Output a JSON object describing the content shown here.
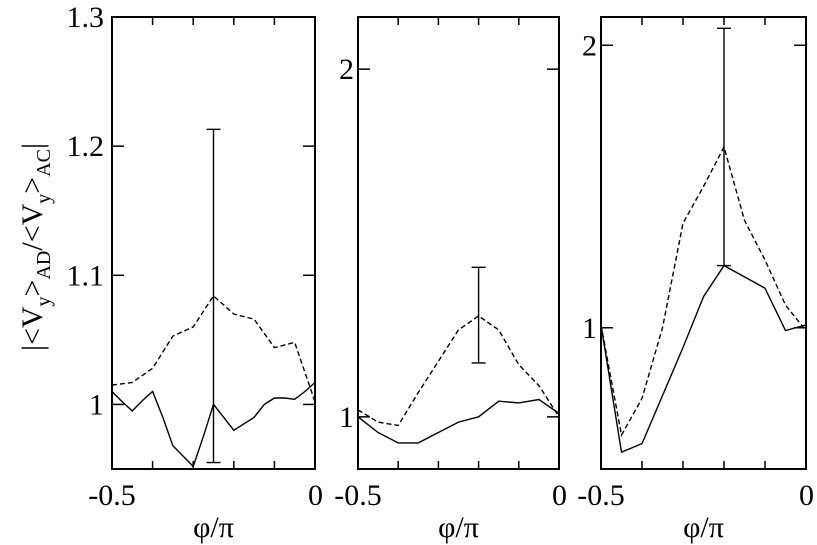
{
  "colors": {
    "line": "#000000",
    "background": "#ffffff"
  },
  "ylabel": {
    "open": "|<V",
    "sub1": "y",
    "mid": ">",
    "sub2": "AD",
    "slash": "/<V",
    "sub3": "y",
    "mid2": ">",
    "sub4": "AC",
    "close": "|"
  },
  "chart_data": [
    {
      "type": "line",
      "xlabel": "φ/π",
      "xlim": [
        -0.5,
        0
      ],
      "ylim": [
        0.95,
        1.3
      ],
      "x_ticks": [
        -0.5,
        0
      ],
      "x_tick_labels": [
        "-0.5",
        "0"
      ],
      "y_ticks": [
        1.0,
        1.1,
        1.2,
        1.3
      ],
      "y_tick_labels": [
        "1",
        "1.1",
        "1.2",
        "1.3"
      ],
      "series": [
        {
          "style": "solid",
          "x": [
            -0.5,
            -0.475,
            -0.45,
            -0.425,
            -0.4,
            -0.375,
            -0.35,
            -0.325,
            -0.3,
            -0.275,
            -0.25,
            -0.225,
            -0.2,
            -0.175,
            -0.15,
            -0.125,
            -0.1,
            -0.075,
            -0.05,
            -0.025,
            0
          ],
          "y": [
            1.01,
            1.002,
            0.995,
            1.003,
            1.01,
            0.99,
            0.968,
            0.96,
            0.952,
            0.975,
            1.0,
            0.99,
            0.98,
            0.985,
            0.99,
            1.0,
            1.005,
            1.005,
            1.004,
            1.01,
            1.017
          ]
        },
        {
          "style": "dashed",
          "x": [
            -0.5,
            -0.45,
            -0.4,
            -0.35,
            -0.3,
            -0.25,
            -0.2,
            -0.15,
            -0.1,
            -0.05,
            0
          ],
          "y": [
            1.015,
            1.017,
            1.028,
            1.053,
            1.06,
            1.084,
            1.07,
            1.066,
            1.044,
            1.048,
            1.002
          ]
        }
      ],
      "error_bars": [
        {
          "x": -0.25,
          "y": 1.084,
          "low": 0.955,
          "high": 1.213
        }
      ]
    },
    {
      "type": "line",
      "xlabel": "φ/π",
      "xlim": [
        -0.5,
        0
      ],
      "ylim": [
        0.85,
        2.15
      ],
      "x_ticks": [
        -0.5,
        0
      ],
      "x_tick_labels": [
        "-0.5",
        "0"
      ],
      "y_ticks": [
        1.0,
        2.0
      ],
      "y_tick_labels": [
        "1",
        "2"
      ],
      "series": [
        {
          "style": "solid",
          "x": [
            -0.5,
            -0.45,
            -0.4,
            -0.35,
            -0.3,
            -0.25,
            -0.2,
            -0.15,
            -0.1,
            -0.05,
            0
          ],
          "y": [
            1.0,
            0.955,
            0.925,
            0.925,
            0.955,
            0.985,
            1.0,
            1.045,
            1.04,
            1.05,
            1.01
          ]
        },
        {
          "style": "dashed",
          "x": [
            -0.5,
            -0.45,
            -0.4,
            -0.35,
            -0.3,
            -0.25,
            -0.2,
            -0.15,
            -0.1,
            -0.05,
            0
          ],
          "y": [
            1.02,
            0.985,
            0.975,
            1.07,
            1.16,
            1.25,
            1.29,
            1.25,
            1.15,
            1.09,
            1.0
          ]
        }
      ],
      "error_bars": [
        {
          "x": -0.2,
          "y": 1.29,
          "low": 1.155,
          "high": 1.43
        }
      ]
    },
    {
      "type": "line",
      "xlabel": "φ/π",
      "xlim": [
        -0.5,
        0
      ],
      "ylim": [
        0.5,
        2.1
      ],
      "x_ticks": [
        -0.5,
        0
      ],
      "x_tick_labels": [
        "-0.5",
        "0"
      ],
      "y_ticks": [
        1.0,
        2.0
      ],
      "y_tick_labels": [
        "1",
        "2"
      ],
      "series": [
        {
          "style": "solid",
          "x": [
            -0.5,
            -0.45,
            -0.4,
            -0.35,
            -0.3,
            -0.25,
            -0.2,
            -0.15,
            -0.1,
            -0.05,
            0
          ],
          "y": [
            1.01,
            0.56,
            0.59,
            0.76,
            0.93,
            1.11,
            1.22,
            1.18,
            1.14,
            0.99,
            1.01
          ]
        },
        {
          "style": "dashed",
          "x": [
            -0.5,
            -0.45,
            -0.4,
            -0.35,
            -0.3,
            -0.25,
            -0.2,
            -0.15,
            -0.1,
            -0.05,
            0
          ],
          "y": [
            1.01,
            0.62,
            0.75,
            1.0,
            1.37,
            1.5,
            1.64,
            1.38,
            1.24,
            1.08,
            0.99
          ]
        }
      ],
      "error_bars": [
        {
          "x": -0.2,
          "y": 1.64,
          "low": 1.22,
          "high": 2.06
        }
      ]
    }
  ]
}
